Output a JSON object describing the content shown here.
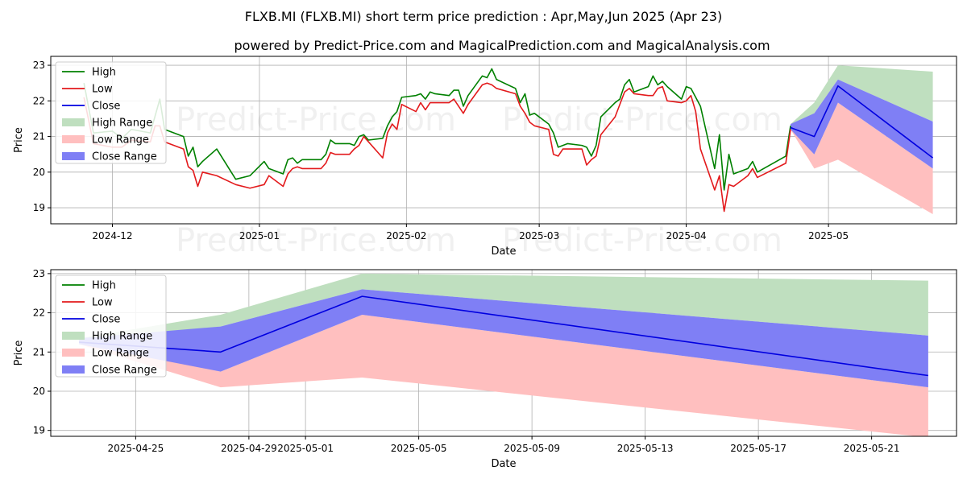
{
  "header": {
    "title": "FLXB.MI (FLXB.MI) short term price prediction : Apr,May,Jun 2025 (Apr 23)",
    "subtitle": "powered by Predict-Price.com and MagicalPrediction.com and MagicalAnalysis.com"
  },
  "watermark": "Predict-Price.com",
  "colors": {
    "high": "#008000",
    "low": "#e31a1c",
    "close": "#0000e0",
    "high_range": "#bfdfbf",
    "low_range": "#ffbfbf",
    "close_range": "#7f7ff5"
  },
  "legend": [
    "High",
    "Low",
    "Close",
    "High Range",
    "Low Range",
    "Close Range"
  ],
  "chart_data": [
    {
      "type": "line",
      "xlabel": "Date",
      "ylabel": "Price",
      "ylim": [
        18.55,
        23.25
      ],
      "yticks": [
        19,
        20,
        21,
        22,
        23
      ],
      "xtick_labels": [
        "2024-12",
        "2025-01",
        "2025-02",
        "2025-03",
        "2025-04",
        "2025-05"
      ],
      "xtick_dates": [
        "2024-12-01",
        "2025-01-01",
        "2025-02-01",
        "2025-03-01",
        "2025-04-01",
        "2025-05-01"
      ],
      "xlim": [
        "2024-11-18",
        "2025-05-28"
      ],
      "legend_position": "upper-left",
      "grid": true,
      "series": [
        {
          "name": "High",
          "points": [
            [
              "2024-11-25",
              22.5
            ],
            [
              "2024-11-27",
              21.1
            ],
            [
              "2024-12-01",
              21.15
            ],
            [
              "2024-12-03",
              20.95
            ],
            [
              "2024-12-05",
              21.2
            ],
            [
              "2024-12-09",
              21.1
            ],
            [
              "2024-12-11",
              22.05
            ],
            [
              "2024-12-12",
              21.2
            ],
            [
              "2024-12-16",
              21.0
            ],
            [
              "2024-12-17",
              20.45
            ],
            [
              "2024-12-18",
              20.7
            ],
            [
              "2024-12-19",
              20.15
            ],
            [
              "2024-12-20",
              20.3
            ],
            [
              "2024-12-23",
              20.65
            ],
            [
              "2024-12-27",
              19.8
            ],
            [
              "2024-12-30",
              19.9
            ],
            [
              "2025-01-02",
              20.3
            ],
            [
              "2025-01-03",
              20.1
            ],
            [
              "2025-01-06",
              19.95
            ],
            [
              "2025-01-07",
              20.35
            ],
            [
              "2025-01-08",
              20.4
            ],
            [
              "2025-01-09",
              20.25
            ],
            [
              "2025-01-10",
              20.35
            ],
            [
              "2025-01-14",
              20.35
            ],
            [
              "2025-01-15",
              20.5
            ],
            [
              "2025-01-16",
              20.9
            ],
            [
              "2025-01-17",
              20.8
            ],
            [
              "2025-01-20",
              20.8
            ],
            [
              "2025-01-21",
              20.75
            ],
            [
              "2025-01-22",
              21.0
            ],
            [
              "2025-01-23",
              21.05
            ],
            [
              "2025-01-24",
              20.9
            ],
            [
              "2025-01-27",
              20.95
            ],
            [
              "2025-01-28",
              21.3
            ],
            [
              "2025-01-29",
              21.55
            ],
            [
              "2025-01-30",
              21.7
            ],
            [
              "2025-01-31",
              22.1
            ],
            [
              "2025-02-03",
              22.15
            ],
            [
              "2025-02-04",
              22.2
            ],
            [
              "2025-02-05",
              22.05
            ],
            [
              "2025-02-06",
              22.25
            ],
            [
              "2025-02-07",
              22.2
            ],
            [
              "2025-02-10",
              22.15
            ],
            [
              "2025-02-11",
              22.3
            ],
            [
              "2025-02-12",
              22.3
            ],
            [
              "2025-02-13",
              21.85
            ],
            [
              "2025-02-14",
              22.15
            ],
            [
              "2025-02-17",
              22.7
            ],
            [
              "2025-02-18",
              22.65
            ],
            [
              "2025-02-19",
              22.9
            ],
            [
              "2025-02-20",
              22.6
            ],
            [
              "2025-02-24",
              22.35
            ],
            [
              "2025-02-25",
              21.95
            ],
            [
              "2025-02-26",
              22.2
            ],
            [
              "2025-02-27",
              21.6
            ],
            [
              "2025-02-28",
              21.65
            ],
            [
              "2025-03-03",
              21.35
            ],
            [
              "2025-03-04",
              21.1
            ],
            [
              "2025-03-05",
              20.7
            ],
            [
              "2025-03-06",
              20.75
            ],
            [
              "2025-03-07",
              20.8
            ],
            [
              "2025-03-10",
              20.75
            ],
            [
              "2025-03-11",
              20.7
            ],
            [
              "2025-03-12",
              20.45
            ],
            [
              "2025-03-13",
              20.75
            ],
            [
              "2025-03-14",
              21.55
            ],
            [
              "2025-03-17",
              21.95
            ],
            [
              "2025-03-18",
              22.05
            ],
            [
              "2025-03-19",
              22.45
            ],
            [
              "2025-03-20",
              22.6
            ],
            [
              "2025-03-21",
              22.25
            ],
            [
              "2025-03-24",
              22.4
            ],
            [
              "2025-03-25",
              22.7
            ],
            [
              "2025-03-26",
              22.45
            ],
            [
              "2025-03-27",
              22.55
            ],
            [
              "2025-03-28",
              22.4
            ],
            [
              "2025-03-31",
              22.05
            ],
            [
              "2025-04-01",
              22.4
            ],
            [
              "2025-04-02",
              22.35
            ],
            [
              "2025-04-03",
              22.1
            ],
            [
              "2025-04-04",
              21.85
            ],
            [
              "2025-04-07",
              20.1
            ],
            [
              "2025-04-08",
              21.05
            ],
            [
              "2025-04-09",
              19.5
            ],
            [
              "2025-04-10",
              20.5
            ],
            [
              "2025-04-11",
              19.95
            ],
            [
              "2025-04-14",
              20.1
            ],
            [
              "2025-04-15",
              20.3
            ],
            [
              "2025-04-16",
              20.0
            ],
            [
              "2025-04-22",
              20.45
            ],
            [
              "2025-04-23",
              21.3
            ]
          ]
        },
        {
          "name": "Low",
          "points": [
            [
              "2024-11-25",
              22.1
            ],
            [
              "2024-11-27",
              20.8
            ],
            [
              "2024-12-01",
              20.7
            ],
            [
              "2024-12-03",
              20.7
            ],
            [
              "2024-12-05",
              20.9
            ],
            [
              "2024-12-09",
              20.85
            ],
            [
              "2024-12-10",
              21.3
            ],
            [
              "2024-12-11",
              21.3
            ],
            [
              "2024-12-12",
              20.85
            ],
            [
              "2024-12-16",
              20.65
            ],
            [
              "2024-12-17",
              20.15
            ],
            [
              "2024-12-18",
              20.05
            ],
            [
              "2024-12-19",
              19.6
            ],
            [
              "2024-12-20",
              20.0
            ],
            [
              "2024-12-23",
              19.9
            ],
            [
              "2024-12-27",
              19.65
            ],
            [
              "2024-12-30",
              19.55
            ],
            [
              "2025-01-02",
              19.65
            ],
            [
              "2025-01-03",
              19.9
            ],
            [
              "2025-01-06",
              19.6
            ],
            [
              "2025-01-07",
              19.95
            ],
            [
              "2025-01-08",
              20.1
            ],
            [
              "2025-01-09",
              20.15
            ],
            [
              "2025-01-10",
              20.1
            ],
            [
              "2025-01-14",
              20.1
            ],
            [
              "2025-01-15",
              20.25
            ],
            [
              "2025-01-16",
              20.55
            ],
            [
              "2025-01-17",
              20.5
            ],
            [
              "2025-01-20",
              20.5
            ],
            [
              "2025-01-21",
              20.65
            ],
            [
              "2025-01-22",
              20.75
            ],
            [
              "2025-01-23",
              21.0
            ],
            [
              "2025-01-24",
              20.85
            ],
            [
              "2025-01-27",
              20.4
            ],
            [
              "2025-01-28",
              21.1
            ],
            [
              "2025-01-29",
              21.35
            ],
            [
              "2025-01-30",
              21.2
            ],
            [
              "2025-01-31",
              21.9
            ],
            [
              "2025-02-03",
              21.7
            ],
            [
              "2025-02-04",
              21.95
            ],
            [
              "2025-02-05",
              21.75
            ],
            [
              "2025-02-06",
              21.95
            ],
            [
              "2025-02-07",
              21.95
            ],
            [
              "2025-02-10",
              21.95
            ],
            [
              "2025-02-11",
              22.05
            ],
            [
              "2025-02-12",
              21.85
            ],
            [
              "2025-02-13",
              21.65
            ],
            [
              "2025-02-14",
              21.9
            ],
            [
              "2025-02-17",
              22.45
            ],
            [
              "2025-02-18",
              22.5
            ],
            [
              "2025-02-19",
              22.45
            ],
            [
              "2025-02-20",
              22.35
            ],
            [
              "2025-02-24",
              22.2
            ],
            [
              "2025-02-25",
              21.85
            ],
            [
              "2025-02-26",
              21.65
            ],
            [
              "2025-02-27",
              21.4
            ],
            [
              "2025-02-28",
              21.3
            ],
            [
              "2025-03-03",
              21.2
            ],
            [
              "2025-03-04",
              20.5
            ],
            [
              "2025-03-05",
              20.45
            ],
            [
              "2025-03-06",
              20.65
            ],
            [
              "2025-03-07",
              20.65
            ],
            [
              "2025-03-10",
              20.65
            ],
            [
              "2025-03-11",
              20.2
            ],
            [
              "2025-03-12",
              20.35
            ],
            [
              "2025-03-13",
              20.45
            ],
            [
              "2025-03-14",
              21.05
            ],
            [
              "2025-03-17",
              21.55
            ],
            [
              "2025-03-18",
              21.9
            ],
            [
              "2025-03-19",
              22.25
            ],
            [
              "2025-03-20",
              22.35
            ],
            [
              "2025-03-21",
              22.2
            ],
            [
              "2025-03-24",
              22.15
            ],
            [
              "2025-03-25",
              22.15
            ],
            [
              "2025-03-26",
              22.35
            ],
            [
              "2025-03-27",
              22.4
            ],
            [
              "2025-03-28",
              22.0
            ],
            [
              "2025-03-31",
              21.95
            ],
            [
              "2025-04-01",
              22.0
            ],
            [
              "2025-04-02",
              22.15
            ],
            [
              "2025-04-03",
              21.7
            ],
            [
              "2025-04-04",
              20.65
            ],
            [
              "2025-04-07",
              19.5
            ],
            [
              "2025-04-08",
              19.9
            ],
            [
              "2025-04-09",
              18.9
            ],
            [
              "2025-04-10",
              19.65
            ],
            [
              "2025-04-11",
              19.6
            ],
            [
              "2025-04-14",
              19.9
            ],
            [
              "2025-04-15",
              20.1
            ],
            [
              "2025-04-16",
              19.85
            ],
            [
              "2025-04-22",
              20.25
            ],
            [
              "2025-04-23",
              21.2
            ]
          ]
        },
        {
          "name": "Close",
          "points": [
            [
              "2025-04-23",
              21.25
            ],
            [
              "2025-04-28",
              21.0
            ],
            [
              "2025-05-03",
              22.42
            ],
            [
              "2025-05-23",
              20.4
            ]
          ]
        }
      ],
      "bands": [
        {
          "name": "High Range",
          "points": [
            [
              "2025-04-23",
              21.25,
              21.35
            ],
            [
              "2025-04-28",
              21.65,
              21.95
            ],
            [
              "2025-05-03",
              22.6,
              23.0
            ],
            [
              "2025-05-23",
              21.42,
              22.82
            ]
          ]
        },
        {
          "name": "Low Range",
          "points": [
            [
              "2025-04-23",
              21.2,
              21.25
            ],
            [
              "2025-04-28",
              20.1,
              20.5
            ],
            [
              "2025-05-03",
              20.35,
              21.95
            ],
            [
              "2025-05-23",
              18.82,
              20.1
            ]
          ]
        },
        {
          "name": "Close Range",
          "points": [
            [
              "2025-04-23",
              21.2,
              21.35
            ],
            [
              "2025-04-28",
              20.5,
              21.65
            ],
            [
              "2025-05-03",
              21.95,
              22.6
            ],
            [
              "2025-05-23",
              20.1,
              21.42
            ]
          ]
        }
      ]
    },
    {
      "type": "line",
      "xlabel": "Date",
      "ylabel": "Price",
      "ylim": [
        18.85,
        23.1
      ],
      "yticks": [
        19,
        20,
        21,
        22,
        23
      ],
      "xtick_labels": [
        "2025-04-25",
        "2025-04-29",
        "2025-05-01",
        "2025-05-05",
        "2025-05-09",
        "2025-05-13",
        "2025-05-17",
        "2025-05-21"
      ],
      "xtick_dates": [
        "2025-04-25",
        "2025-04-29",
        "2025-05-01",
        "2025-05-05",
        "2025-05-09",
        "2025-05-13",
        "2025-05-17",
        "2025-05-21"
      ],
      "xlim": [
        "2025-04-22",
        "2025-05-24"
      ],
      "legend_position": "upper-left",
      "grid": true,
      "series": [
        {
          "name": "High",
          "points": []
        },
        {
          "name": "Low",
          "points": []
        },
        {
          "name": "Close",
          "points": [
            [
              "2025-04-23",
              21.25
            ],
            [
              "2025-04-28",
              21.0
            ],
            [
              "2025-05-03",
              22.42
            ],
            [
              "2025-05-23",
              20.4
            ]
          ]
        }
      ],
      "bands": [
        {
          "name": "High Range",
          "points": [
            [
              "2025-04-23",
              21.25,
              21.35
            ],
            [
              "2025-04-28",
              21.65,
              21.95
            ],
            [
              "2025-05-03",
              22.6,
              23.0
            ],
            [
              "2025-05-23",
              21.42,
              22.82
            ]
          ]
        },
        {
          "name": "Low Range",
          "points": [
            [
              "2025-04-23",
              21.2,
              21.25
            ],
            [
              "2025-04-28",
              20.1,
              20.5
            ],
            [
              "2025-05-03",
              20.35,
              21.95
            ],
            [
              "2025-05-23",
              18.82,
              20.1
            ]
          ]
        },
        {
          "name": "Close Range",
          "points": [
            [
              "2025-04-23",
              21.2,
              21.35
            ],
            [
              "2025-04-28",
              20.5,
              21.65
            ],
            [
              "2025-05-03",
              21.95,
              22.6
            ],
            [
              "2025-05-23",
              20.1,
              21.42
            ]
          ]
        }
      ]
    }
  ]
}
